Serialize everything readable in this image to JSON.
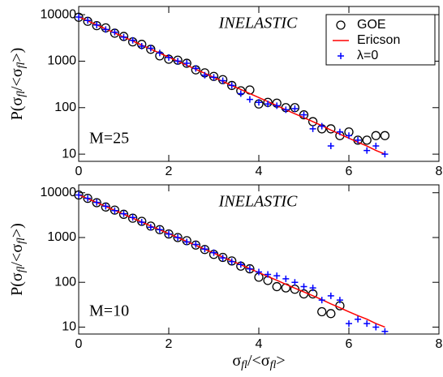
{
  "chart_data": [
    {
      "type": "scatter",
      "log_y": true,
      "legend": "upper right",
      "annotations": [
        "INELASTIC",
        "M=25"
      ],
      "ylabel": [
        "P(σ",
        "fl",
        "/<σ",
        "fl",
        ">)"
      ],
      "xlim": [
        0,
        8
      ],
      "xticks": [
        0,
        2,
        4,
        6,
        8
      ],
      "ylim": [
        7,
        15000
      ],
      "yticks": [
        10,
        100,
        1000,
        10000
      ],
      "x": [
        0,
        0.2,
        0.4,
        0.6,
        0.8,
        1,
        1.2,
        1.4,
        1.6,
        1.8,
        2,
        2.2,
        2.4,
        2.6,
        2.8,
        3,
        3.2,
        3.4,
        3.6,
        3.8,
        4,
        4.2,
        4.4,
        4.6,
        4.8,
        5,
        5.2,
        5.4,
        5.6,
        5.8,
        6,
        6.2,
        6.4,
        6.6,
        6.8
      ],
      "series": [
        {
          "name": "GOE",
          "marker": "circle",
          "color": "#000000",
          "values": [
            8800,
            7200,
            5800,
            5200,
            4000,
            3400,
            2600,
            2300,
            1800,
            1300,
            1100,
            1050,
            900,
            650,
            560,
            470,
            400,
            300,
            230,
            240,
            120,
            130,
            125,
            100,
            100,
            70,
            50,
            35,
            35,
            25,
            30,
            20,
            20,
            25,
            25
          ]
        },
        {
          "name": "Ericson",
          "marker": "line",
          "color": "#ff0000",
          "values": [
            9000,
            7369,
            6033,
            4939,
            4044,
            3311,
            2711,
            2219,
            1817,
            1488,
            1218,
            997,
            816,
            669,
            547,
            448,
            367,
            300,
            246,
            201,
            165,
            135,
            111,
            90,
            74,
            61,
            50,
            41,
            33,
            27,
            22,
            18,
            15,
            12,
            10
          ]
        },
        {
          "name": "λ=0",
          "marker": "plus",
          "color": "#0000ff",
          "values": [
            8900,
            7500,
            6000,
            4800,
            4200,
            3300,
            2800,
            2100,
            1900,
            1500,
            1200,
            1000,
            900,
            700,
            500,
            450,
            380,
            300,
            200,
            150,
            130,
            120,
            110,
            90,
            95,
            70,
            35,
            40,
            15,
            30,
            25,
            20,
            12,
            15,
            10
          ]
        }
      ]
    },
    {
      "type": "scatter",
      "log_y": true,
      "annotations": [
        "INELASTIC",
        "M=10"
      ],
      "ylabel": [
        "P(σ",
        "fl",
        "/<σ",
        "fl",
        ">)"
      ],
      "xlabel": [
        "σ",
        "fl",
        "/<σ",
        "fl",
        ">"
      ],
      "xlim": [
        0,
        8
      ],
      "xticks": [
        0,
        2,
        4,
        6,
        8
      ],
      "ylim": [
        7,
        15000
      ],
      "yticks": [
        10,
        100,
        1000,
        10000
      ],
      "x": [
        0,
        0.2,
        0.4,
        0.6,
        0.8,
        1,
        1.2,
        1.4,
        1.6,
        1.8,
        2,
        2.2,
        2.4,
        2.6,
        2.8,
        3,
        3.2,
        3.4,
        3.6,
        3.8,
        4,
        4.2,
        4.4,
        4.6,
        4.8,
        5,
        5.2,
        5.4,
        5.6,
        5.8,
        6,
        6.2,
        6.4,
        6.6,
        6.8
      ],
      "series": [
        {
          "marker": "circle",
          "color": "#000000",
          "values": [
            8900,
            7500,
            6000,
            4800,
            4100,
            3300,
            2700,
            2300,
            1800,
            1500,
            1200,
            1000,
            850,
            680,
            540,
            420,
            360,
            300,
            230,
            200,
            130,
            110,
            80,
            75,
            70,
            55,
            55,
            22,
            20,
            30,
            null,
            null,
            null,
            null,
            null
          ]
        },
        {
          "marker": "line",
          "color": "#ff0000",
          "values": [
            9000,
            7369,
            6033,
            4939,
            4044,
            3311,
            2711,
            2219,
            1817,
            1488,
            1218,
            997,
            816,
            669,
            547,
            448,
            367,
            300,
            246,
            201,
            165,
            135,
            111,
            90,
            74,
            61,
            50,
            41,
            33,
            27,
            22,
            18,
            15,
            12,
            10
          ]
        },
        {
          "marker": "plus",
          "color": "#0000ff",
          "values": [
            8900,
            7500,
            6100,
            5000,
            4000,
            3400,
            2800,
            2200,
            1700,
            1500,
            1200,
            1000,
            800,
            700,
            550,
            460,
            350,
            290,
            250,
            200,
            170,
            150,
            140,
            120,
            100,
            80,
            75,
            40,
            50,
            40,
            12,
            15,
            12,
            10,
            8
          ]
        }
      ]
    }
  ]
}
